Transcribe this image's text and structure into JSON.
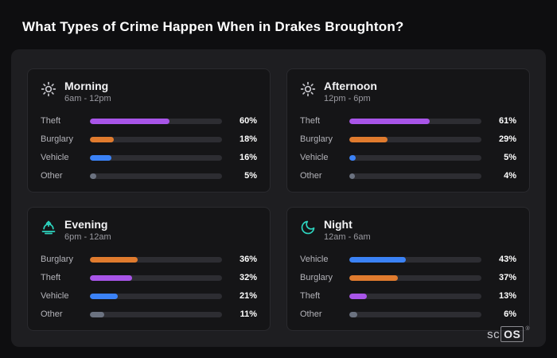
{
  "page": {
    "title": "What Types of Crime Happen When in Drakes Broughton?"
  },
  "brand": {
    "prefix": "sc",
    "suffix": "OS",
    "reg": "®"
  },
  "colors": {
    "theft": "#a855e8",
    "burglary": "#e07b2e",
    "vehicle": "#3b82f6",
    "other": "#6b7280",
    "icon_neutral": "#c8c8ce",
    "icon_accent": "#2dd4bf"
  },
  "chart_data": {
    "type": "bar",
    "unit": "%",
    "xlim": [
      0,
      100
    ],
    "groups": [
      {
        "title": "Morning",
        "subtitle": "6am - 12pm",
        "icon": "sun-icon",
        "rows": [
          {
            "label": "Theft",
            "value": 60,
            "pct": "60%",
            "color": "#a855e8"
          },
          {
            "label": "Burglary",
            "value": 18,
            "pct": "18%",
            "color": "#e07b2e"
          },
          {
            "label": "Vehicle",
            "value": 16,
            "pct": "16%",
            "color": "#3b82f6"
          },
          {
            "label": "Other",
            "value": 5,
            "pct": "5%",
            "color": "#6b7280"
          }
        ]
      },
      {
        "title": "Afternoon",
        "subtitle": "12pm - 6pm",
        "icon": "sun-icon",
        "rows": [
          {
            "label": "Theft",
            "value": 61,
            "pct": "61%",
            "color": "#a855e8"
          },
          {
            "label": "Burglary",
            "value": 29,
            "pct": "29%",
            "color": "#e07b2e"
          },
          {
            "label": "Vehicle",
            "value": 5,
            "pct": "5%",
            "color": "#3b82f6"
          },
          {
            "label": "Other",
            "value": 4,
            "pct": "4%",
            "color": "#6b7280"
          }
        ]
      },
      {
        "title": "Evening",
        "subtitle": "6pm - 12am",
        "icon": "sunset-icon",
        "rows": [
          {
            "label": "Burglary",
            "value": 36,
            "pct": "36%",
            "color": "#e07b2e"
          },
          {
            "label": "Theft",
            "value": 32,
            "pct": "32%",
            "color": "#a855e8"
          },
          {
            "label": "Vehicle",
            "value": 21,
            "pct": "21%",
            "color": "#3b82f6"
          },
          {
            "label": "Other",
            "value": 11,
            "pct": "11%",
            "color": "#6b7280"
          }
        ]
      },
      {
        "title": "Night",
        "subtitle": "12am - 6am",
        "icon": "moon-icon",
        "rows": [
          {
            "label": "Vehicle",
            "value": 43,
            "pct": "43%",
            "color": "#3b82f6"
          },
          {
            "label": "Burglary",
            "value": 37,
            "pct": "37%",
            "color": "#e07b2e"
          },
          {
            "label": "Theft",
            "value": 13,
            "pct": "13%",
            "color": "#a855e8"
          },
          {
            "label": "Other",
            "value": 6,
            "pct": "6%",
            "color": "#6b7280"
          }
        ]
      }
    ]
  }
}
